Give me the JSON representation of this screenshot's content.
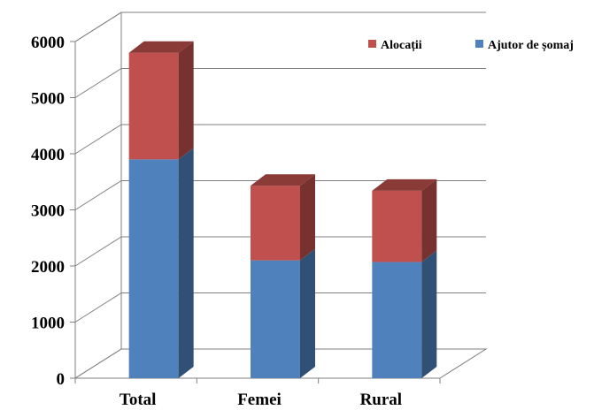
{
  "chart_data": {
    "type": "bar",
    "stacked": true,
    "three_d": true,
    "categories": [
      "Total",
      "Femei",
      "Rural"
    ],
    "series": [
      {
        "name": "Ajutor de șomaj",
        "values": [
          3900,
          2100,
          2070
        ],
        "color": "#4F81BD"
      },
      {
        "name": "Alocații",
        "values": [
          1900,
          1330,
          1270
        ],
        "color": "#C0504D"
      }
    ],
    "ylim": [
      0,
      6000
    ],
    "yticks": [
      "0",
      "1000",
      "2000",
      "3000",
      "4000",
      "5000",
      "6000"
    ],
    "grid": true,
    "legend_position": "top-right",
    "legend_order": [
      "Alocații",
      "Ajutor de șomaj"
    ],
    "title": "",
    "xlabel": "",
    "ylabel": ""
  }
}
